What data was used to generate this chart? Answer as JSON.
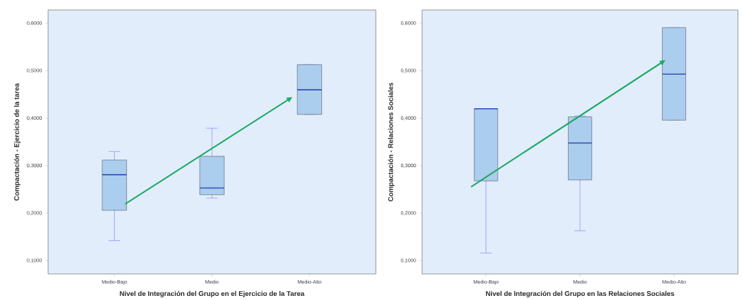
{
  "chart_data": [
    {
      "type": "box",
      "xlabel": "Nivel de Integración del Grupo en el Ejercicio de la Tarea",
      "ylabel": "Compactación - Ejercicio de la tarea",
      "categories": [
        "Medio-Bajo",
        "Medio",
        "Medio-Alto"
      ],
      "ylim": [
        0.072,
        0.628
      ],
      "yticks": [
        {
          "value": 0.1,
          "label": "0,1000"
        },
        {
          "value": 0.2,
          "label": "0,2000"
        },
        {
          "value": 0.3,
          "label": "0,3000"
        },
        {
          "value": 0.4,
          "label": "0,4000"
        },
        {
          "value": 0.5,
          "label": "0,5000"
        },
        {
          "value": 0.6,
          "label": "0,6000"
        }
      ],
      "grid": false,
      "series": [
        {
          "color": "#abcdee",
          "boxes": [
            {
              "low": 0.142,
              "q1": 0.206,
              "median": 0.281,
              "q3": 0.312,
              "high": 0.33
            },
            {
              "low": 0.232,
              "q1": 0.239,
              "median": 0.253,
              "q3": 0.32,
              "high": 0.379
            },
            {
              "low": 0.408,
              "q1": 0.408,
              "median": 0.46,
              "q3": 0.513,
              "high": 0.513
            }
          ]
        }
      ]
    },
    {
      "type": "box",
      "xlabel": "Nivel de Integración del Grupo en las Relaciones Sociales",
      "ylabel": "Compactación - Relaciones Sociales",
      "categories": [
        "Medio-Bajo",
        "Medio",
        "Medio-Alto"
      ],
      "ylim": [
        0.072,
        0.628
      ],
      "yticks": [
        {
          "value": 0.1,
          "label": "0,1000"
        },
        {
          "value": 0.2,
          "label": "0,2000"
        },
        {
          "value": 0.3,
          "label": "0,3000"
        },
        {
          "value": 0.4,
          "label": "0,4000"
        },
        {
          "value": 0.5,
          "label": "0,5000"
        },
        {
          "value": 0.6,
          "label": "0,6000"
        }
      ],
      "grid": false,
      "series": [
        {
          "color": "#abcdee",
          "boxes": [
            {
              "low": 0.116,
              "q1": 0.268,
              "median": 0.42,
              "q3": 0.42,
              "high": 0.42
            },
            {
              "low": 0.163,
              "q1": 0.27,
              "median": 0.348,
              "q3": 0.403,
              "high": 0.405
            },
            {
              "low": 0.396,
              "q1": 0.396,
              "median": 0.493,
              "q3": 0.591,
              "high": 0.591
            }
          ]
        }
      ]
    }
  ]
}
